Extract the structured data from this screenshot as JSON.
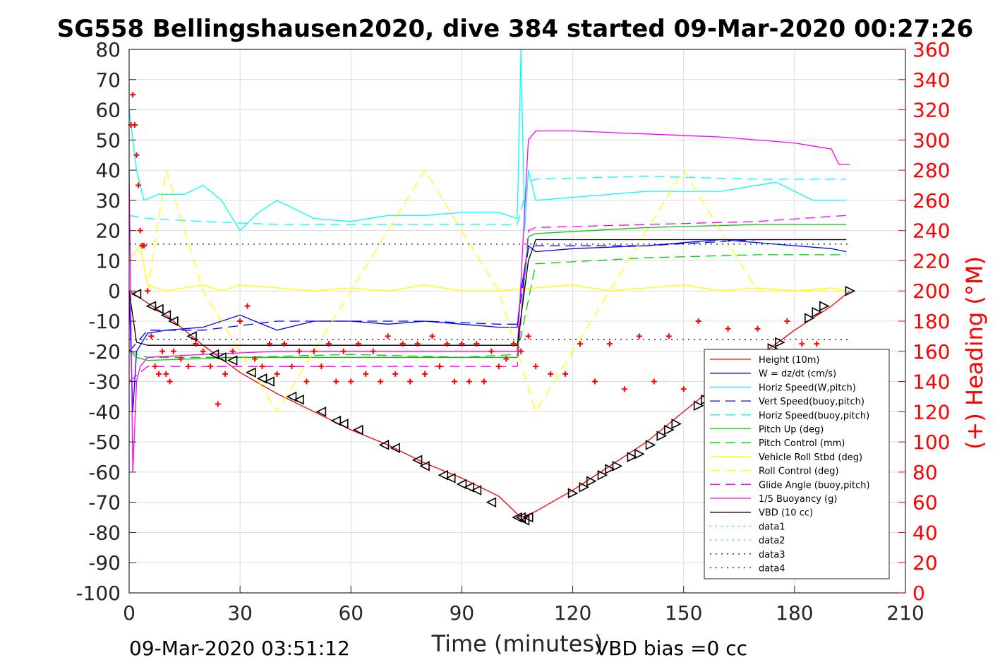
{
  "chart_data": {
    "type": "line",
    "title": "SG558 Bellingshausen2020, dive 384 started 09-Mar-2020 00:27:26",
    "xlabel": "Time (minutes)",
    "ylabel_right": "(+) Heading (°M)",
    "xlim": [
      0,
      210
    ],
    "ylim_left": [
      -100,
      80
    ],
    "ylim_right": [
      0,
      360
    ],
    "x_ticks": [
      "0",
      "30",
      "60",
      "90",
      "120",
      "150",
      "180",
      "210"
    ],
    "y_ticks_left": [
      "80",
      "70",
      "60",
      "50",
      "40",
      "30",
      "20",
      "10",
      "0",
      "-10",
      "-20",
      "-30",
      "-40",
      "-50",
      "-60",
      "-70",
      "-80",
      "-90",
      "-100"
    ],
    "y_ticks_right": [
      "360",
      "340",
      "320",
      "300",
      "280",
      "260",
      "240",
      "220",
      "200",
      "180",
      "160",
      "140",
      "120",
      "100",
      "80",
      "60",
      "40",
      "20",
      "0"
    ],
    "grid": true,
    "legend_position": "lower-right",
    "footer_left": "09-Mar-2020 03:51:12",
    "footer_right": "VBD bias =0 cc",
    "series": [
      {
        "name": "Height (10m)",
        "color": "#ff0000",
        "style": "solid",
        "x": [
          0,
          10,
          20,
          30,
          40,
          50,
          60,
          70,
          80,
          90,
          100,
          106,
          110,
          120,
          130,
          140,
          150,
          160,
          170,
          180,
          190,
          195
        ],
        "y": [
          0,
          -8,
          -18,
          -27,
          -34,
          -40,
          -46,
          -51,
          -57,
          -62,
          -68,
          -75,
          -73,
          -66,
          -58,
          -50,
          -40,
          -30,
          -22,
          -13,
          -5,
          0
        ]
      },
      {
        "name": "W = dz/dt (cm/s)",
        "color": "#0000ff",
        "style": "solid",
        "x": [
          0,
          1,
          2,
          5,
          10,
          20,
          30,
          40,
          50,
          60,
          70,
          80,
          90,
          100,
          105,
          106,
          108,
          110,
          120,
          140,
          160,
          180,
          190,
          194
        ],
        "y": [
          0,
          -40,
          -20,
          -14,
          -13,
          -12,
          -8,
          -13,
          -10,
          -10,
          -11,
          -10,
          -11,
          -12,
          -12,
          0,
          15,
          13,
          14,
          15,
          17,
          15,
          14,
          13
        ]
      },
      {
        "name": "Horiz Speed(W,pitch)",
        "color": "#00ffff",
        "style": "solid",
        "x": [
          0,
          2,
          4,
          8,
          15,
          20,
          25,
          30,
          35,
          40,
          50,
          60,
          70,
          80,
          90,
          100,
          105,
          106,
          107,
          108,
          110,
          120,
          140,
          160,
          175,
          185,
          194
        ],
        "y": [
          60,
          40,
          30,
          32,
          32,
          35,
          30,
          20,
          26,
          30,
          24,
          23,
          25,
          25,
          26,
          26,
          24,
          80,
          20,
          40,
          30,
          31,
          33,
          33,
          36,
          30,
          30
        ]
      },
      {
        "name": "Vert Speed(buoy,pitch)",
        "color": "#0000ff",
        "style": "dash",
        "x": [
          0,
          5,
          20,
          40,
          60,
          80,
          100,
          105,
          108,
          110,
          140,
          170,
          194
        ],
        "y": [
          -20,
          -13,
          -13,
          -10,
          -10,
          -10,
          -11,
          -11,
          14,
          15,
          15,
          17,
          17
        ]
      },
      {
        "name": "Horiz Speed(buoy,pitch)",
        "color": "#00ffff",
        "style": "dash",
        "x": [
          0,
          5,
          20,
          40,
          60,
          80,
          100,
          105,
          108,
          110,
          140,
          170,
          194
        ],
        "y": [
          25,
          24,
          23,
          22,
          22,
          22,
          22,
          22,
          36,
          37,
          38,
          37,
          37
        ]
      },
      {
        "name": "Pitch Up (deg)",
        "color": "#00cc00",
        "style": "solid",
        "x": [
          0,
          2,
          5,
          30,
          60,
          90,
          105,
          108,
          110,
          140,
          170,
          194
        ],
        "y": [
          -20,
          -22,
          -23,
          -22,
          -22,
          -22,
          -22,
          18,
          19,
          21,
          22,
          22
        ]
      },
      {
        "name": "Pitch Control (mm)",
        "color": "#00cc00",
        "style": "dash",
        "x": [
          0,
          5,
          30,
          60,
          90,
          105,
          110,
          140,
          170,
          194
        ],
        "y": [
          -20,
          -22,
          -22,
          -21,
          -22,
          -21,
          9,
          11,
          12,
          12
        ]
      },
      {
        "name": "Vehicle Roll Stbd (deg)",
        "color": "#ffff00",
        "style": "solid",
        "x": [
          0,
          3,
          5,
          10,
          15,
          20,
          25,
          30,
          40,
          50,
          60,
          70,
          80,
          90,
          100,
          110,
          120,
          130,
          140,
          150,
          160,
          170,
          180,
          190,
          194
        ],
        "y": [
          10,
          15,
          2,
          0,
          1,
          2,
          0,
          2,
          1,
          0,
          1,
          0,
          2,
          0,
          0,
          1,
          2,
          0,
          1,
          2,
          0,
          1,
          0,
          1,
          0
        ]
      },
      {
        "name": "Roll Control (deg)",
        "color": "#ffff00",
        "style": "dash",
        "x": [
          0,
          5,
          10,
          20,
          40,
          60,
          80,
          100,
          110,
          130,
          150,
          170,
          190,
          194
        ],
        "y": [
          0,
          0,
          40,
          0,
          -40,
          0,
          40,
          0,
          -40,
          0,
          40,
          0,
          0,
          0
        ]
      },
      {
        "name": "Glide Angle (buoy,pitch)",
        "color": "#ff00ff",
        "style": "dash",
        "x": [
          0,
          5,
          20,
          40,
          60,
          80,
          100,
          105,
          108,
          110,
          140,
          170,
          194
        ],
        "y": [
          -30,
          -25,
          -25,
          -25,
          -25,
          -25,
          -25,
          -25,
          20,
          21,
          22,
          23,
          25
        ]
      },
      {
        "name": "1/5 Buoyancy (g)",
        "color": "#ff00ff",
        "style": "solid",
        "x": [
          0,
          1,
          2,
          3,
          5,
          20,
          40,
          60,
          80,
          100,
          105,
          108,
          110,
          120,
          140,
          160,
          180,
          190,
          192,
          195
        ],
        "y": [
          40,
          -60,
          -30,
          -25,
          -22,
          -21,
          -20,
          -20,
          -20,
          -20,
          -20,
          50,
          53,
          53,
          52,
          51,
          49,
          47,
          42,
          42
        ]
      },
      {
        "name": "VBD (10 cc)",
        "color": "#000000",
        "style": "solid",
        "x": [
          0,
          2,
          5,
          60,
          104,
          105,
          108,
          110,
          150,
          194
        ],
        "y": [
          0,
          -17,
          -18,
          -18,
          -18,
          -18,
          10,
          17,
          17,
          17
        ]
      },
      {
        "name": "data1",
        "color": "#00ff00",
        "style": "dot",
        "x": [],
        "y": []
      },
      {
        "name": "data2",
        "color": "#00ff00",
        "style": "dot",
        "x": [],
        "y": []
      },
      {
        "name": "data3",
        "color": "#0000aa",
        "style": "dot",
        "x": [
          0,
          195
        ],
        "y": [
          15.5,
          15.5
        ]
      },
      {
        "name": "data4",
        "color": "#0000aa",
        "style": "dot",
        "x": [
          0,
          195
        ],
        "y": [
          -16,
          -16
        ]
      }
    ],
    "heading_points": {
      "color": "#ff0000",
      "axis": "right",
      "x": [
        0.5,
        1,
        1.5,
        2,
        2.5,
        3,
        3.5,
        4,
        5,
        6,
        7,
        8,
        9,
        10,
        11,
        12,
        14,
        16,
        18,
        20,
        22,
        24,
        26,
        28,
        30,
        32,
        34,
        36,
        38,
        40,
        42,
        44,
        46,
        48,
        50,
        52,
        54,
        56,
        58,
        60,
        62,
        64,
        66,
        68,
        70,
        72,
        74,
        76,
        78,
        80,
        82,
        84,
        86,
        88,
        90,
        92,
        94,
        96,
        98,
        100,
        102,
        104,
        106,
        108,
        110,
        114,
        118,
        122,
        126,
        130,
        134,
        138,
        142,
        146,
        150,
        154,
        158,
        162,
        166,
        170,
        174,
        178,
        182,
        186
      ],
      "y": [
        310,
        330,
        310,
        290,
        270,
        240,
        230,
        230,
        200,
        170,
        150,
        145,
        160,
        145,
        140,
        160,
        155,
        150,
        165,
        160,
        150,
        125,
        145,
        160,
        180,
        190,
        155,
        150,
        165,
        145,
        165,
        150,
        160,
        140,
        160,
        150,
        165,
        140,
        160,
        140,
        165,
        145,
        160,
        140,
        170,
        145,
        165,
        140,
        165,
        145,
        170,
        150,
        165,
        140,
        165,
        140,
        165,
        140,
        160,
        150,
        155,
        165,
        160,
        170,
        150,
        145,
        145,
        165,
        140,
        165,
        135,
        170,
        140,
        170,
        135,
        180,
        140,
        175,
        150,
        175,
        160,
        180,
        165,
        165
      ]
    },
    "depth_markers": {
      "color": "#000000",
      "x": [
        2,
        6,
        8,
        10,
        12,
        17,
        23,
        25,
        28,
        33,
        36,
        38,
        44,
        46,
        52,
        56,
        58,
        62,
        69,
        72,
        78,
        80,
        85,
        87,
        90,
        92,
        94,
        98,
        105,
        106,
        107,
        108,
        120,
        123,
        125,
        128,
        130,
        132,
        136,
        138,
        141,
        144,
        146,
        148,
        154,
        156,
        163,
        165,
        167,
        170,
        172,
        174,
        176,
        184,
        186,
        188,
        195
      ],
      "y": [
        -1,
        -5,
        -6,
        -8,
        -10,
        -15,
        -21,
        -22,
        -23,
        -27,
        -29,
        -30,
        -35,
        -36,
        -40,
        -43,
        -44,
        -46,
        -51,
        -52,
        -56,
        -58,
        -61,
        -62,
        -64,
        -65,
        -66,
        -70,
        -75,
        -75,
        -76,
        -75,
        -67,
        -65,
        -63,
        -61,
        -59,
        -58,
        -55,
        -54,
        -51,
        -48,
        -46,
        -44,
        -38,
        -36,
        -30,
        -28,
        -26,
        -23,
        -21,
        -19,
        -17,
        -9,
        -7,
        -5,
        0
      ]
    }
  }
}
